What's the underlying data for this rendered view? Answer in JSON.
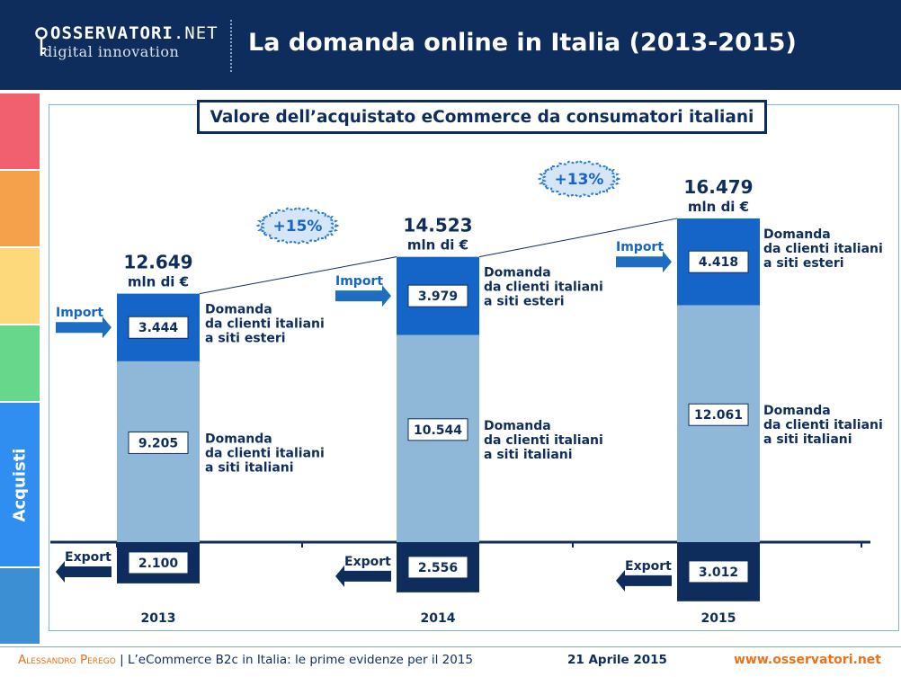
{
  "header": {
    "logo_top": "OSSERVATORI",
    "logo_net": ".NET",
    "logo_bottom": "digital innovation",
    "title": "La domanda online in Italia (2013-2015)"
  },
  "sidebar": {
    "tabs": [
      "#f0606e",
      "#f5a04a",
      "#fdd97b",
      "#67d78b",
      "#2f8ef0",
      "#3d8fd3"
    ],
    "active_label": "Acquisti"
  },
  "colors": {
    "dark_blue": "#0f2d5c",
    "import_blue": "#1565c8",
    "domestic_light": "#8fb7d8",
    "export_navy": "#0f2d5c",
    "arrow_blue": "#1d6ec3",
    "badge_fill": "#d6e6f6",
    "badge_stroke": "#2a7dd1"
  },
  "chart_data": {
    "type": "bar",
    "title": "Valore dell’acquistato eCommerce da consumatori italiani",
    "categories": [
      "2013",
      "2014",
      "2015"
    ],
    "totals": [
      {
        "value": "12.649",
        "unit": "mln di €"
      },
      {
        "value": "14.523",
        "unit": "mln di €"
      },
      {
        "value": "16.479",
        "unit": "mln di €"
      }
    ],
    "series": [
      {
        "name": "Domanda da clienti italiani a siti italiani",
        "values": [
          9205,
          10544,
          12061
        ],
        "labels": [
          "9.205",
          "10.544",
          "12.061"
        ]
      },
      {
        "name": "Domanda da clienti italiani a siti esteri",
        "values": [
          3444,
          3979,
          4418
        ],
        "labels": [
          "3.444",
          "3.979",
          "4.418"
        ]
      },
      {
        "name": "Export",
        "values": [
          2100,
          2556,
          3012
        ],
        "labels": [
          "2.100",
          "2.556",
          "3.012"
        ]
      }
    ],
    "series_text": {
      "estero": [
        "Domanda",
        "da clienti italiani",
        "a siti esteri"
      ],
      "italiano": [
        "Domanda",
        "da clienti italiani",
        "a siti italiani"
      ]
    },
    "growth": [
      "+15%",
      "+13%"
    ],
    "import_label": "Import",
    "export_label": "Export"
  },
  "footer": {
    "author": "Alessandro Perego",
    "separator": "|",
    "text": "L’eCommerce B2c in Italia: le prime evidenze per il 2015",
    "date": "21 Aprile 2015",
    "url": "www.osservatori.net"
  }
}
